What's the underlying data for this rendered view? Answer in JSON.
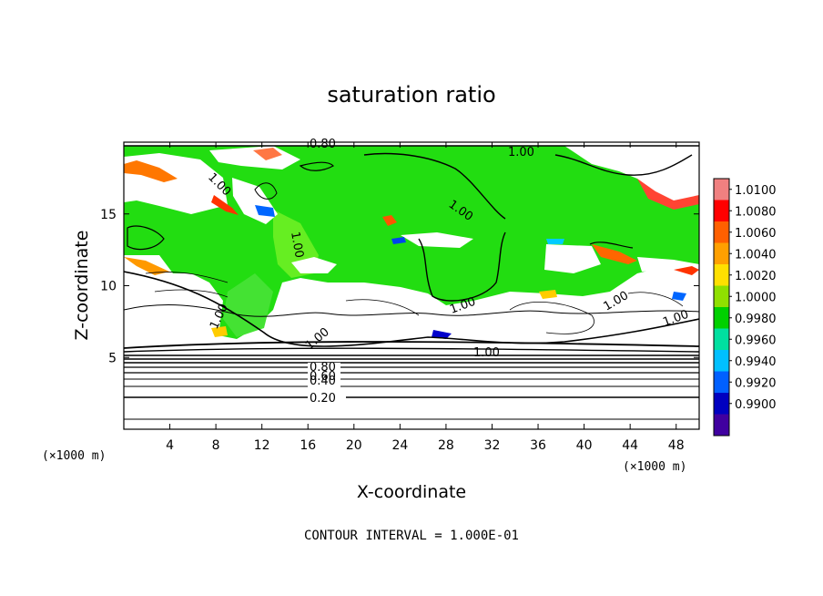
{
  "chart_data": {
    "type": "heatmap",
    "title": "saturation ratio",
    "xlabel": "X-coordinate",
    "ylabel": "Z-coordinate",
    "x_unit": "(×1000 m)",
    "y_unit": "(×1000 m)",
    "xlim": [
      0,
      50
    ],
    "ylim": [
      0,
      20
    ],
    "xticks": [
      "4",
      "8",
      "12",
      "16",
      "20",
      "24",
      "28",
      "32",
      "36",
      "40",
      "44",
      "48"
    ],
    "yticks": [
      "5",
      "10",
      "15"
    ],
    "colorbar": {
      "labels": [
        "1.0100",
        "1.0080",
        "1.0060",
        "1.0040",
        "1.0020",
        "1.0000",
        "0.9980",
        "0.9960",
        "0.9940",
        "0.9920",
        "0.9900"
      ],
      "colors": [
        "#f08080",
        "#ff0000",
        "#ff6000",
        "#ffa000",
        "#ffe000",
        "#90e000",
        "#00d000",
        "#00e0a0",
        "#00c0ff",
        "#0060ff",
        "#0000c0",
        "#4000a0"
      ]
    },
    "contour_labels": [
      "0.80",
      "1.00",
      "1.00",
      "1.00",
      "1.00",
      "1.00",
      "1.00",
      "1.00",
      "1.00",
      "1.00",
      "0.80",
      "0.60",
      "0.40",
      "0.20"
    ],
    "footer": "CONTOUR INTERVAL = 1.000E-01"
  }
}
